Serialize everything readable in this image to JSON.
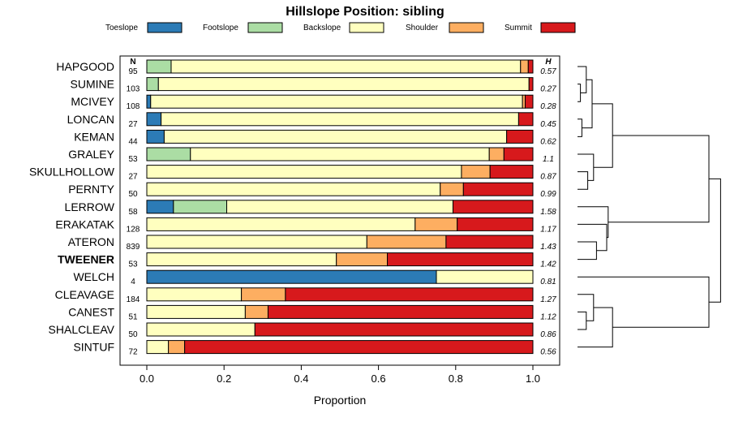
{
  "chart_data": {
    "type": "bar",
    "subtype": "stacked-horizontal-proportion",
    "title": "Hillslope Position: sibling",
    "xlabel": "Proportion",
    "xlim": [
      0,
      1
    ],
    "xticks": [
      "0.0",
      "0.2",
      "0.4",
      "0.6",
      "0.8",
      "1.0"
    ],
    "n_header": "N",
    "h_header": "H",
    "legend_position": "top",
    "series": [
      {
        "name": "Toeslope",
        "color": "#2c7bb6"
      },
      {
        "name": "Footslope",
        "color": "#abdda4"
      },
      {
        "name": "Backslope",
        "color": "#ffffbf"
      },
      {
        "name": "Shoulder",
        "color": "#fdae61"
      },
      {
        "name": "Summit",
        "color": "#d7191c"
      }
    ],
    "rows": [
      {
        "label": "HAPGOOD",
        "n": "95",
        "h": "0.57",
        "values": [
          0.0,
          0.063,
          0.905,
          0.02,
          0.012
        ]
      },
      {
        "label": "SUMINE",
        "n": "103",
        "h": "0.27",
        "values": [
          0.0,
          0.03,
          0.96,
          0.0,
          0.01
        ]
      },
      {
        "label": "MCIVEY",
        "n": "108",
        "h": "0.28",
        "values": [
          0.01,
          0.0,
          0.963,
          0.007,
          0.02
        ]
      },
      {
        "label": "LONCAN",
        "n": "27",
        "h": "0.45",
        "values": [
          0.037,
          0.0,
          0.926,
          0.0,
          0.037
        ]
      },
      {
        "label": "KEMAN",
        "n": "44",
        "h": "0.62",
        "values": [
          0.045,
          0.0,
          0.887,
          0.0,
          0.068
        ]
      },
      {
        "label": "GRALEY",
        "n": "53",
        "h": "1.1",
        "values": [
          0.0,
          0.113,
          0.774,
          0.038,
          0.075
        ]
      },
      {
        "label": "SKULLHOLLOW",
        "n": "27",
        "h": "0.87",
        "values": [
          0.0,
          0.0,
          0.815,
          0.074,
          0.111
        ]
      },
      {
        "label": "PERNTY",
        "n": "50",
        "h": "0.99",
        "values": [
          0.0,
          0.0,
          0.76,
          0.06,
          0.18
        ]
      },
      {
        "label": "LERROW",
        "n": "58",
        "h": "1.58",
        "values": [
          0.069,
          0.138,
          0.586,
          0.0,
          0.207
        ]
      },
      {
        "label": "ERAKATAK",
        "n": "128",
        "h": "1.17",
        "values": [
          0.0,
          0.0,
          0.695,
          0.109,
          0.196
        ]
      },
      {
        "label": "ATERON",
        "n": "839",
        "h": "1.43",
        "values": [
          0.0,
          0.0,
          0.57,
          0.205,
          0.225
        ]
      },
      {
        "label": "TWEENER",
        "n": "53",
        "h": "1.42",
        "values": [
          0.0,
          0.0,
          0.491,
          0.132,
          0.377
        ],
        "bold": true
      },
      {
        "label": "WELCH",
        "n": "4",
        "h": "0.81",
        "values": [
          0.75,
          0.0,
          0.25,
          0.0,
          0.0
        ]
      },
      {
        "label": "CLEAVAGE",
        "n": "184",
        "h": "1.27",
        "values": [
          0.0,
          0.0,
          0.245,
          0.114,
          0.641
        ]
      },
      {
        "label": "CANEST",
        "n": "51",
        "h": "1.12",
        "values": [
          0.0,
          0.0,
          0.255,
          0.059,
          0.686
        ]
      },
      {
        "label": "SHALCLEAV",
        "n": "50",
        "h": "0.86",
        "values": [
          0.0,
          0.0,
          0.28,
          0.0,
          0.72
        ]
      },
      {
        "label": "SINTUF",
        "n": "72",
        "h": "0.56",
        "values": [
          0.0,
          0.0,
          0.056,
          0.042,
          0.902
        ]
      }
    ],
    "dendrogram": {
      "linkage": [
        [
          "SUMINE",
          "MCIVEY",
          0.02
        ],
        [
          "LONCAN",
          "KEMAN",
          0.03
        ],
        [
          "HAPGOOD",
          "SUMINE|MCIVEY",
          0.06
        ],
        [
          "HAPGOOD|SUMINE|MCIVEY",
          "LONCAN|KEMAN",
          0.1
        ],
        [
          "SKULLHOLLOW",
          "PERNTY",
          0.07
        ],
        [
          "GRALEY",
          "SKULLHOLLOW|PERNTY",
          0.11
        ],
        [
          "HAPGOOD|SUMINE|MCIVEY|LONCAN|KEMAN",
          "GRALEY|SKULLHOLLOW|PERNTY",
          0.24
        ],
        [
          "ATERON",
          "TWEENER",
          0.13
        ],
        [
          "ERAKATAK",
          "ATERON|TWEENER",
          0.2
        ],
        [
          "LERROW",
          "ERAKATAK|ATERON|TWEENER",
          0.21
        ],
        [
          "HAPGOOD|SUMINE|MCIVEY|LONCAN|KEMAN|GRALEY|SKULLHOLLOW|PERNTY",
          "LERROW|ERAKATAK|ATERON|TWEENER",
          0.9
        ],
        [
          "CANEST",
          "SHALCLEAV",
          0.06
        ],
        [
          "CLEAVAGE",
          "CANEST|SHALCLEAV",
          0.11
        ],
        [
          "CLEAVAGE|CANEST|SHALCLEAV",
          "SINTUF",
          0.24
        ],
        [
          "WELCH",
          "CLEAVAGE|CANEST|SHALCLEAV|SINTUF",
          0.9
        ],
        [
          "HAPGOOD|SUMINE|MCIVEY|LONCAN|KEMAN|GRALEY|SKULLHOLLOW|PERNTY|LERROW|ERAKATAK|ATERON|TWEENER",
          "WELCH|CLEAVAGE|CANEST|SHALCLEAV|SINTUF",
          0.98
        ]
      ],
      "max_height": 1.0
    }
  }
}
